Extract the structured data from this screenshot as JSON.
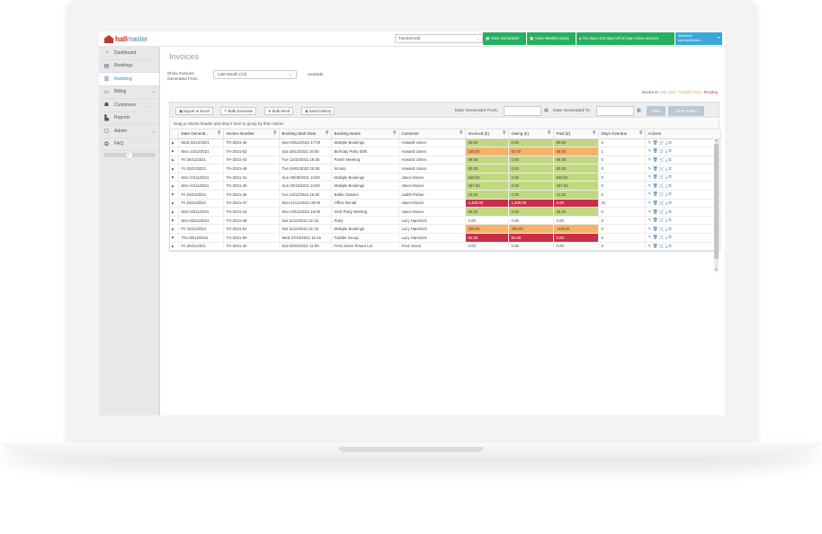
{
  "app": {
    "logo_main": "hall",
    "logo_accent": "master"
  },
  "topbar": {
    "hall_select": "Tutorial Hall",
    "view_scheduler": "View Scheduler",
    "view_weekly_diary": "View Weekly Diary",
    "trial_notice": "You have 233 days left of your Active account.",
    "welcome_line1": "Welcome",
    "welcome_line2": "tutorial@hallm..."
  },
  "sidebar": {
    "items": [
      {
        "label": "Dashboard",
        "icon": "dashboard-icon"
      },
      {
        "label": "Bookings",
        "icon": "bookings-icon"
      },
      {
        "label": "Invoicing",
        "icon": "invoice-icon"
      },
      {
        "label": "Billing",
        "icon": "billing-icon"
      },
      {
        "label": "Customers",
        "icon": "customers-icon"
      },
      {
        "label": "Reports",
        "icon": "reports-icon"
      },
      {
        "label": "Admin",
        "icon": "admin-icon"
      },
      {
        "label": "FAQ",
        "icon": "faq-icon"
      }
    ]
  },
  "page": {
    "title": "Invoices",
    "show_label": "Show Invoices Generated From",
    "period": "Last Month (13)",
    "onwards": "onwards",
    "legend_prefix": "Invoice is",
    "legend_fully_paid": "Fully Paid",
    "legend_partially_paid": "Partially Paid",
    "legend_pending": "Pending"
  },
  "toolbar": {
    "export_excel": "Export to Excel",
    "bulk_generate": "Bulk Generate",
    "bulk_send": "Bulk Send",
    "send_history": "Send History",
    "date_from_label": "Date Generated From:",
    "date_to_label": "Date Generated To:",
    "filter": "Filter",
    "clear_filters": "Clear Filters"
  },
  "grid": {
    "group_hint": "Drag a column header and drop it here to group by that column",
    "columns": [
      "Date Generat...",
      "Invoice Number",
      "Booking Start Date",
      "Booking Name",
      "Customer",
      "Invoiced (£)",
      "Owing (£)",
      "Paid (£)",
      "Days Overdue",
      "Actions"
    ],
    "rows": [
      {
        "date": "Wed 01/12/2021",
        "inv": "TH-2021-45",
        "start": "Mon 08/11/2021 17:00",
        "name": "Multiple Bookings",
        "cust": "Howard Jones",
        "invoiced": "80.00",
        "owing": "0.00",
        "paid": "80.00",
        "overdue": "0",
        "status": "green"
      },
      {
        "date": "Mon 13/12/2021",
        "inv": "TH-2021-52",
        "start": "Sat 18/12/2021 16:00",
        "name": "Birthday Party 50th",
        "cust": "Howard Jones",
        "invoiced": "100.00",
        "owing": "50.00",
        "paid": "50.00",
        "overdue": "1",
        "status": "orange"
      },
      {
        "date": "Fri 26/11/2021",
        "inv": "TH-2021-43",
        "start": "Tue 12/10/2021 18:30",
        "name": "Parish Meeting",
        "cust": "Howard Jones",
        "invoiced": "86.50",
        "owing": "0.00",
        "paid": "86.50",
        "overdue": "0",
        "status": "green"
      },
      {
        "date": "Fri 03/12/2021",
        "inv": "TH-2021-48",
        "start": "Tue 04/01/2022 19:30",
        "name": "Scouts",
        "cust": "Howard Jones",
        "invoiced": "80.00",
        "owing": "0.00",
        "paid": "80.00",
        "overdue": "0",
        "status": "green"
      },
      {
        "date": "Mon 22/11/2021",
        "inv": "TH-2021-41",
        "start": "Sun 05/09/2021 13:00",
        "name": "Multiple Bookings",
        "cust": "Jason Moore",
        "invoiced": "840.00",
        "owing": "0.00",
        "paid": "840.00",
        "overdue": "0",
        "status": "green"
      },
      {
        "date": "Mon 22/11/2021",
        "inv": "TH-2021-40",
        "start": "Sun 03/10/2021 13:00",
        "name": "Multiple Bookings",
        "cust": "Jason Moore",
        "invoiced": "267.50",
        "owing": "0.00",
        "paid": "267.50",
        "overdue": "0",
        "status": "green"
      },
      {
        "date": "Fri 03/12/2021",
        "inv": "TH-2021-46",
        "start": "Tue 23/11/2021 16:30",
        "name": "Ballet Classes",
        "cust": "Judith Parker",
        "invoiced": "24.00",
        "owing": "0.00",
        "paid": "24.00",
        "overdue": "0",
        "status": "green"
      },
      {
        "date": "Fri 03/12/2021",
        "inv": "TH-2021-47",
        "start": "Mon 01/11/2021 08:00",
        "name": "Office Rental",
        "cust": "Jason Moore",
        "invoiced": "1,400.00",
        "owing": "1,400.00",
        "paid": "0.00",
        "overdue": "21",
        "status": "red"
      },
      {
        "date": "Mon 29/11/2021",
        "inv": "TH-2021-44",
        "start": "Mon 29/11/2021 19:00",
        "name": "NHS Party Meeting",
        "cust": "Jason Moore",
        "invoiced": "55.00",
        "owing": "0.00",
        "paid": "55.00",
        "overdue": "0",
        "status": "green"
      },
      {
        "date": "Mon 06/12/2021",
        "inv": "TH-2021-49",
        "start": "Sat 11/12/2021 11:15",
        "name": "Party",
        "cust": "Lucy Hammick",
        "invoiced": "0.00",
        "owing": "0.00",
        "paid": "0.00",
        "overdue": "0",
        "status": "none"
      },
      {
        "date": "Fri 10/12/2021",
        "inv": "TH-2021-51",
        "start": "Sat 11/12/2021 11:15",
        "name": "Multiple Bookings",
        "cust": "Lucy Hammick",
        "invoiced": "305.00",
        "owing": "405.00",
        "paid": "-100.00",
        "overdue": "0",
        "status": "orange"
      },
      {
        "date": "Thu 09/12/2021",
        "inv": "TH-2021-50",
        "start": "Wed 27/10/2021 15:15",
        "name": "Toddler Group",
        "cust": "Lucy Hammick",
        "invoiced": "84.00",
        "owing": "84.00",
        "paid": "0.00",
        "overdue": "5",
        "status": "red"
      },
      {
        "date": "Fri 26/11/2021",
        "inv": "TH-2021-42",
        "start": "Sat 01/01/2022 12:00",
        "name": "Fred Jones Tenant Let",
        "cust": "Fred Jones",
        "invoiced": "0.00",
        "owing": "0.00",
        "paid": "0.00",
        "overdue": "0",
        "status": "none"
      }
    ]
  },
  "colors": {
    "accent": "#2d7bbf",
    "green_button": "#27ae60",
    "paid": "#c1d880",
    "partial": "#f4b26a",
    "pending": "#c8304a"
  }
}
